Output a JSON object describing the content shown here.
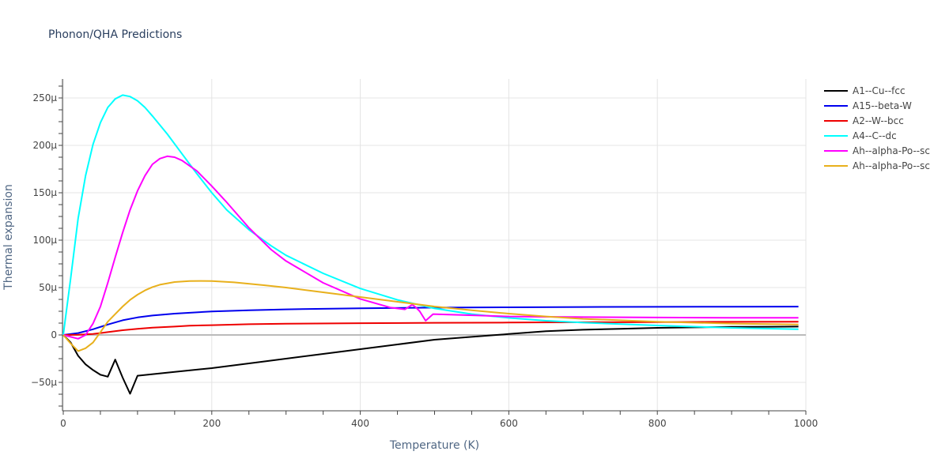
{
  "title": "Phonon/QHA Predictions",
  "chart_data": {
    "type": "line",
    "title": "Phonon/QHA Predictions",
    "xlabel": "Temperature (K)",
    "ylabel": "Thermal expansion",
    "xlim": [
      0,
      1000
    ],
    "ylim": [
      -8e-05,
      0.00027
    ],
    "x_ticks": [
      0,
      200,
      400,
      600,
      800,
      1000
    ],
    "x_tick_labels": [
      "0",
      "200",
      "400",
      "600",
      "800",
      "1000"
    ],
    "y_ticks": [
      -5e-05,
      0,
      5e-05,
      0.0001,
      0.00015,
      0.0002,
      0.00025
    ],
    "y_tick_labels": [
      "−50μ",
      "0",
      "50μ",
      "100μ",
      "150μ",
      "200μ",
      "250μ"
    ],
    "grid": true,
    "legend_position": "top-right",
    "series": [
      {
        "name": "A1--Cu--fcc",
        "color": "#000000",
        "points": [
          [
            0,
            0
          ],
          [
            10,
            -8e-06
          ],
          [
            20,
            -2.2e-05
          ],
          [
            30,
            -3.1e-05
          ],
          [
            40,
            -3.7e-05
          ],
          [
            50,
            -4.2e-05
          ],
          [
            60,
            -4.4e-05
          ],
          [
            70,
            -2.6e-05
          ],
          [
            80,
            -4.5e-05
          ],
          [
            90,
            -6.2e-05
          ],
          [
            100,
            -4.3e-05
          ],
          [
            150,
            -3.9e-05
          ],
          [
            200,
            -3.5e-05
          ],
          [
            270,
            -2.8e-05
          ],
          [
            350,
            -2e-05
          ],
          [
            400,
            -1.5e-05
          ],
          [
            450,
            -1e-05
          ],
          [
            500,
            -5e-06
          ],
          [
            550,
            -2e-06
          ],
          [
            600,
            1e-06
          ],
          [
            650,
            4e-06
          ],
          [
            700,
            5.5e-06
          ],
          [
            750,
            6.5e-06
          ],
          [
            800,
            7.5e-06
          ],
          [
            850,
            8e-06
          ],
          [
            900,
            8.5e-06
          ],
          [
            950,
            8.7e-06
          ],
          [
            990,
            8.8e-06
          ]
        ]
      },
      {
        "name": "A15--beta-W",
        "color": "#0000ee",
        "points": [
          [
            0,
            0
          ],
          [
            20,
            2e-06
          ],
          [
            40,
            6e-06
          ],
          [
            60,
            1.1e-05
          ],
          [
            80,
            1.55e-05
          ],
          [
            100,
            1.85e-05
          ],
          [
            120,
            2.05e-05
          ],
          [
            150,
            2.25e-05
          ],
          [
            200,
            2.48e-05
          ],
          [
            250,
            2.6e-05
          ],
          [
            300,
            2.7e-05
          ],
          [
            400,
            2.82e-05
          ],
          [
            500,
            2.88e-05
          ],
          [
            600,
            2.92e-05
          ],
          [
            700,
            2.95e-05
          ],
          [
            800,
            2.97e-05
          ],
          [
            900,
            2.98e-05
          ],
          [
            990,
            2.99e-05
          ]
        ]
      },
      {
        "name": "A2--W--bcc",
        "color": "#ee0000",
        "points": [
          [
            0,
            0
          ],
          [
            20,
            2e-07
          ],
          [
            40,
            1e-06
          ],
          [
            60,
            3e-06
          ],
          [
            80,
            5e-06
          ],
          [
            100,
            6.5e-06
          ],
          [
            120,
            7.7e-06
          ],
          [
            150,
            8.8e-06
          ],
          [
            170,
            9.8e-06
          ],
          [
            200,
            1.03e-05
          ],
          [
            250,
            1.13e-05
          ],
          [
            300,
            1.18e-05
          ],
          [
            400,
            1.24e-05
          ],
          [
            500,
            1.28e-05
          ],
          [
            600,
            1.31e-05
          ],
          [
            700,
            1.34e-05
          ],
          [
            800,
            1.36e-05
          ],
          [
            900,
            1.38e-05
          ],
          [
            990,
            1.4e-05
          ]
        ]
      },
      {
        "name": "A4--C--dc",
        "color": "#00ffff",
        "points": [
          [
            0,
            0
          ],
          [
            10,
            6e-05
          ],
          [
            20,
            0.000123
          ],
          [
            30,
            0.000168
          ],
          [
            40,
            0.000201
          ],
          [
            50,
            0.000224
          ],
          [
            60,
            0.00024
          ],
          [
            70,
            0.000249
          ],
          [
            80,
            0.000253
          ],
          [
            90,
            0.0002515
          ],
          [
            100,
            0.000247
          ],
          [
            110,
            0.00024
          ],
          [
            120,
            0.000231
          ],
          [
            140,
            0.000212
          ],
          [
            160,
            0.000191
          ],
          [
            180,
            0.00017
          ],
          [
            200,
            0.00015
          ],
          [
            220,
            0.000132
          ],
          [
            250,
            0.000111
          ],
          [
            280,
            9.4e-05
          ],
          [
            300,
            8.4e-05
          ],
          [
            350,
            6.5e-05
          ],
          [
            400,
            4.9e-05
          ],
          [
            450,
            3.7e-05
          ],
          [
            500,
            2.8e-05
          ],
          [
            550,
            2.2e-05
          ],
          [
            600,
            1.8e-05
          ],
          [
            650,
            1.5e-05
          ],
          [
            700,
            1.3e-05
          ],
          [
            800,
            1e-05
          ],
          [
            900,
            7.5e-06
          ],
          [
            990,
            6e-06
          ]
        ]
      },
      {
        "name": "Ah--alpha-Po--sc",
        "color": "#ff00ff",
        "points": [
          [
            0,
            0
          ],
          [
            10,
            -2e-06
          ],
          [
            20,
            -4e-06
          ],
          [
            30,
            0
          ],
          [
            40,
            1.2e-05
          ],
          [
            50,
            3e-05
          ],
          [
            60,
            5.5e-05
          ],
          [
            70,
            8.2e-05
          ],
          [
            80,
            0.000108
          ],
          [
            90,
            0.000132
          ],
          [
            100,
            0.000152
          ],
          [
            110,
            0.000168
          ],
          [
            120,
            0.00018
          ],
          [
            130,
            0.000186
          ],
          [
            140,
            0.0001885
          ],
          [
            150,
            0.0001875
          ],
          [
            160,
            0.000184
          ],
          [
            180,
            0.000173
          ],
          [
            200,
            0.000157
          ],
          [
            220,
            0.00014
          ],
          [
            250,
            0.000113
          ],
          [
            280,
            9e-05
          ],
          [
            300,
            7.8e-05
          ],
          [
            350,
            5.5e-05
          ],
          [
            400,
            3.8e-05
          ],
          [
            440,
            2.9e-05
          ],
          [
            460,
            2.7e-05
          ],
          [
            470,
            3.2e-05
          ],
          [
            475,
            2.9e-05
          ],
          [
            480,
            2.5e-05
          ],
          [
            488,
            1.5e-05
          ],
          [
            498,
            2.2e-05
          ],
          [
            520,
            2.15e-05
          ],
          [
            560,
            2.05e-05
          ],
          [
            600,
            1.95e-05
          ],
          [
            700,
            1.88e-05
          ],
          [
            800,
            1.84e-05
          ],
          [
            900,
            1.82e-05
          ],
          [
            990,
            1.81e-05
          ]
        ]
      },
      {
        "name": "Ah--alpha-Po--sc",
        "color": "#e8b01c",
        "points": [
          [
            0,
            0
          ],
          [
            10,
            -9e-06
          ],
          [
            20,
            -1.7e-05
          ],
          [
            30,
            -1.4e-05
          ],
          [
            40,
            -8e-06
          ],
          [
            50,
            3e-06
          ],
          [
            60,
            1.4e-05
          ],
          [
            70,
            2.2e-05
          ],
          [
            80,
            3e-05
          ],
          [
            90,
            3.7e-05
          ],
          [
            100,
            4.25e-05
          ],
          [
            110,
            4.7e-05
          ],
          [
            120,
            5.05e-05
          ],
          [
            130,
            5.3e-05
          ],
          [
            150,
            5.58e-05
          ],
          [
            170,
            5.68e-05
          ],
          [
            185,
            5.7e-05
          ],
          [
            200,
            5.68e-05
          ],
          [
            230,
            5.55e-05
          ],
          [
            270,
            5.25e-05
          ],
          [
            300,
            5e-05
          ],
          [
            350,
            4.5e-05
          ],
          [
            400,
            4e-05
          ],
          [
            450,
            3.5e-05
          ],
          [
            500,
            3e-05
          ],
          [
            550,
            2.6e-05
          ],
          [
            600,
            2.25e-05
          ],
          [
            650,
            1.95e-05
          ],
          [
            700,
            1.7e-05
          ],
          [
            800,
            1.4e-05
          ],
          [
            900,
            1.2e-05
          ],
          [
            990,
            1.1e-05
          ]
        ]
      }
    ]
  }
}
